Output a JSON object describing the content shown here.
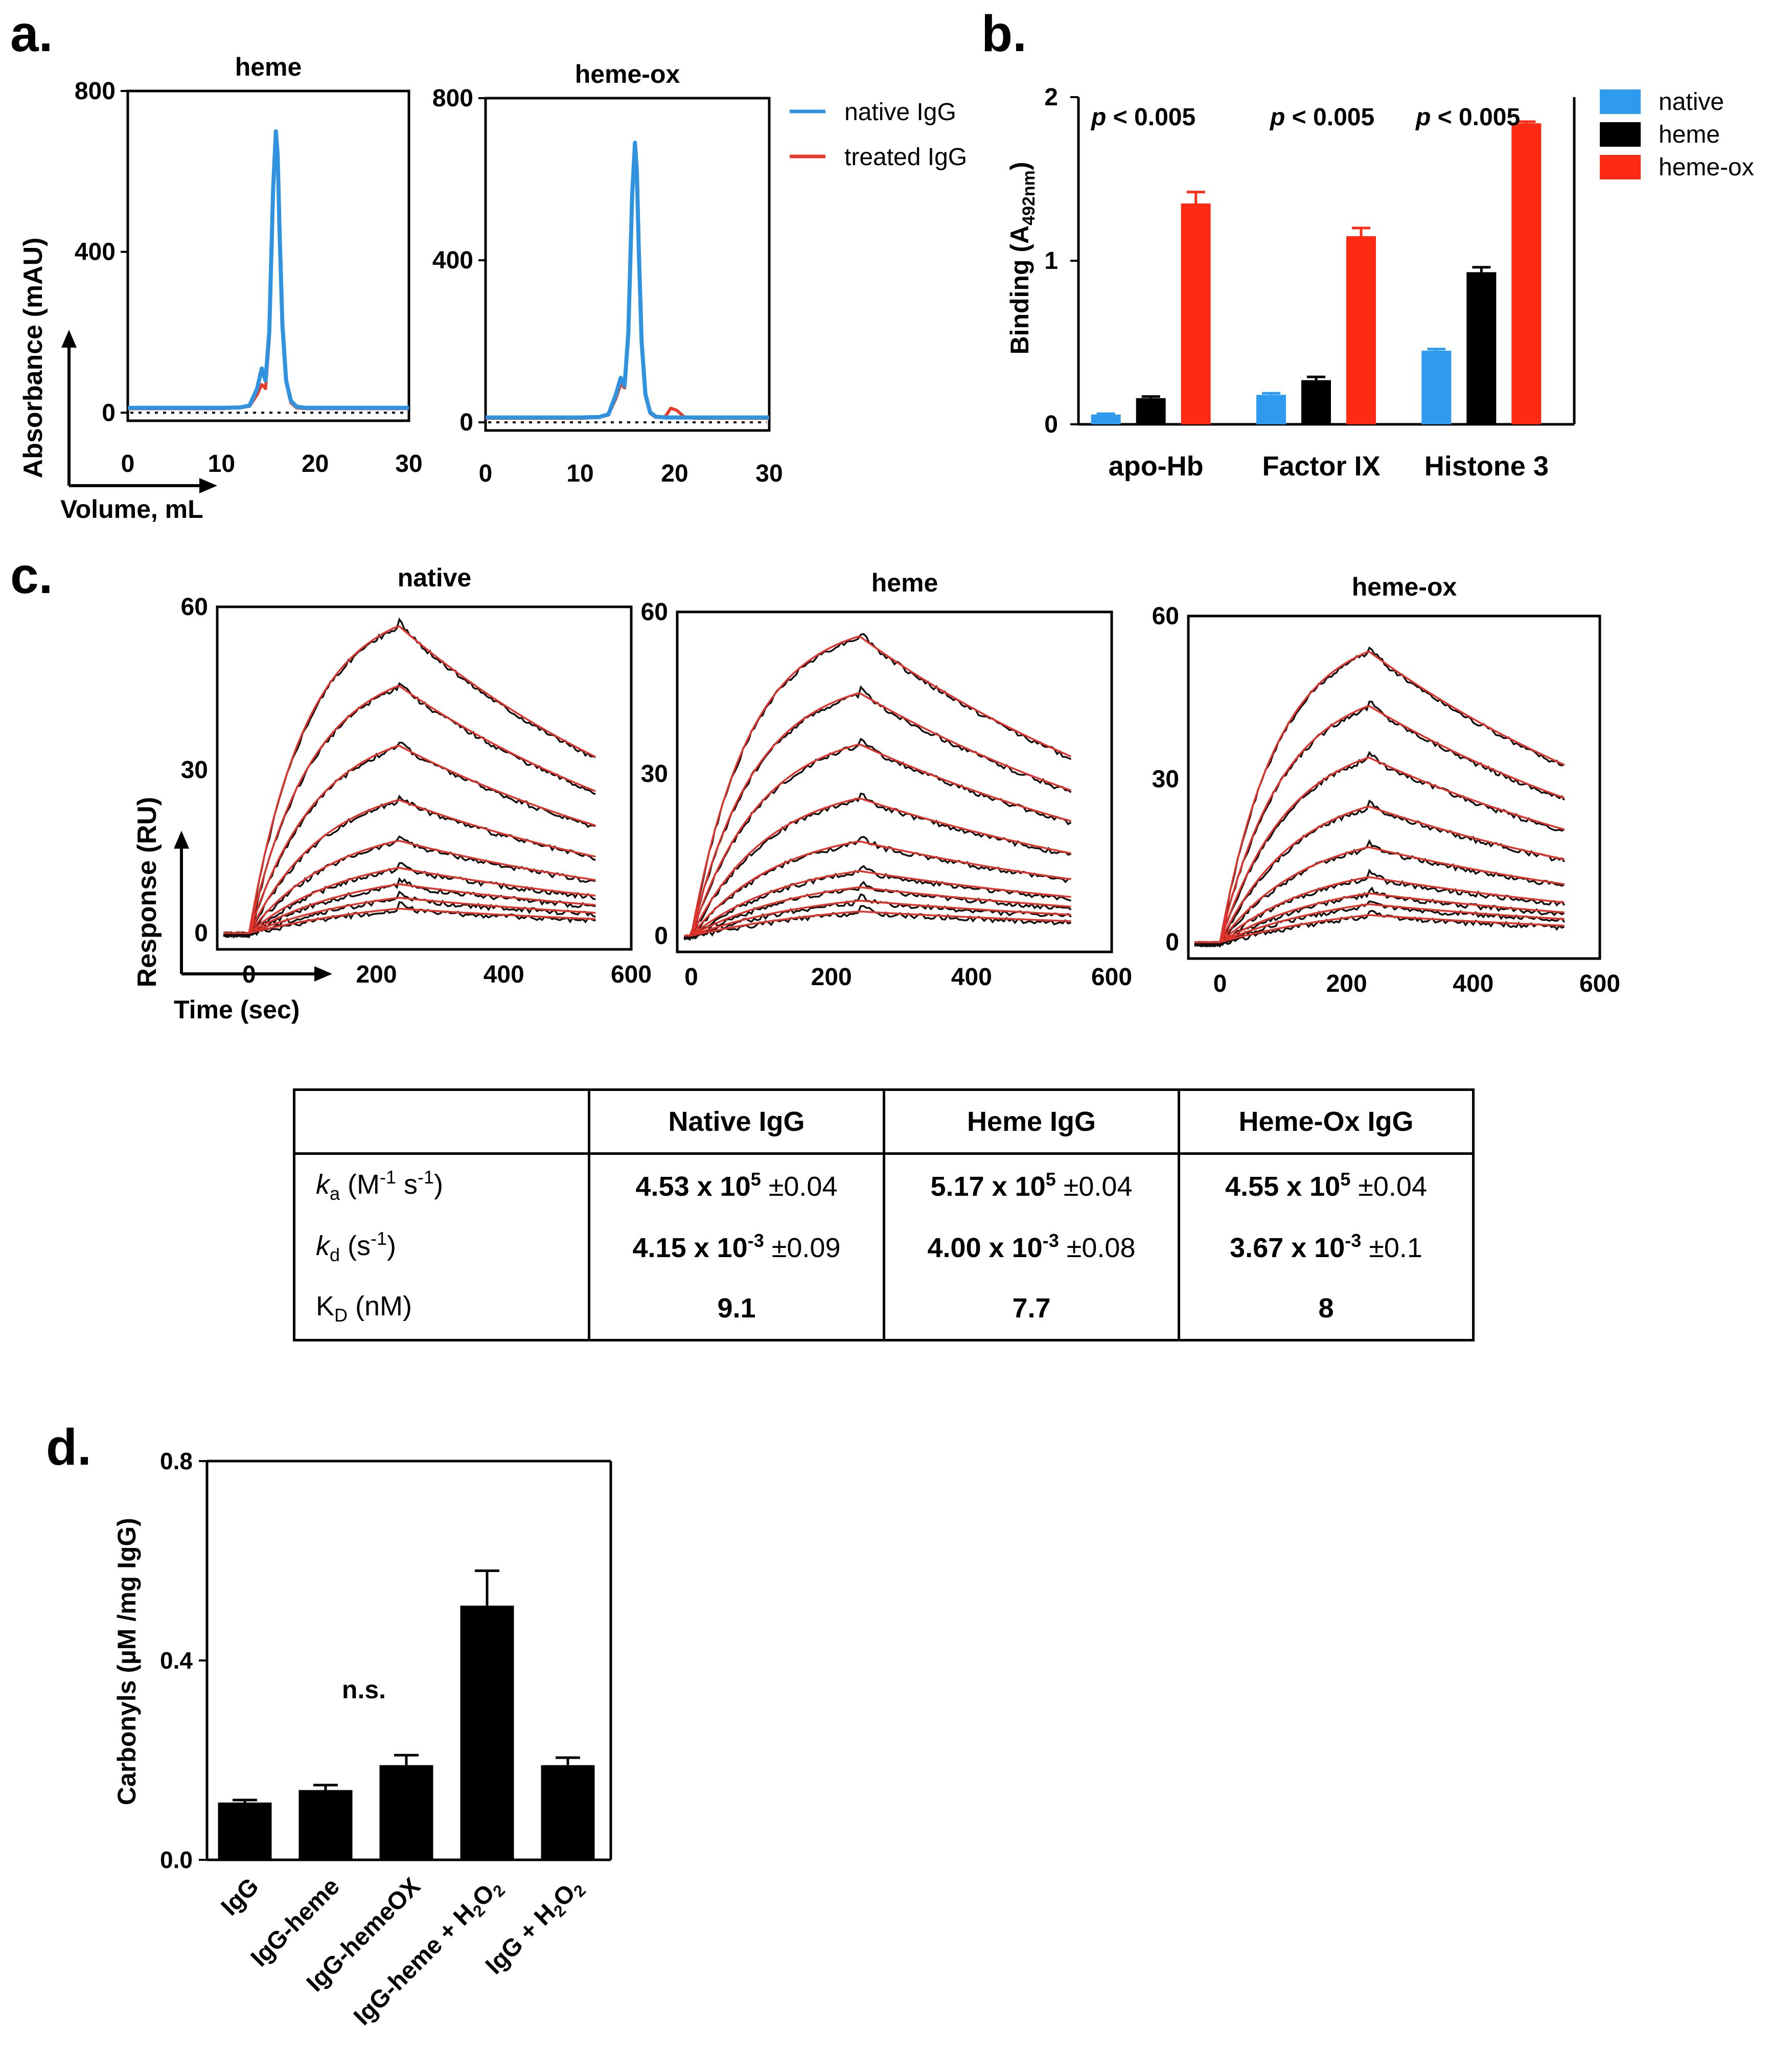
{
  "panel_labels": {
    "a": "a.",
    "b": "b.",
    "c": "c.",
    "d": "d."
  },
  "chart_data": [
    {
      "id": "a-heme",
      "type": "line",
      "title": "heme",
      "xlabel": "Volume, mL",
      "ylabel": "Absorbance (mAU)",
      "xlim": [
        0,
        30
      ],
      "ylim": [
        -20,
        800
      ],
      "xticks": [
        "0",
        "10",
        "20",
        "30"
      ],
      "yticks": [
        "0",
        "400",
        "800"
      ],
      "baseline": 0,
      "series": [
        {
          "name": "native IgG",
          "color": "#2f93e0",
          "x": [
            0,
            10,
            12,
            13,
            13.8,
            14.3,
            14.7,
            15.1,
            15.5,
            15.8,
            16.0,
            16.2,
            16.5,
            16.9,
            17.4,
            18,
            19,
            20,
            22,
            30
          ],
          "y": [
            12,
            12,
            13,
            18,
            60,
            110,
            80,
            200,
            550,
            700,
            640,
            450,
            220,
            80,
            30,
            15,
            12,
            12,
            12,
            12
          ]
        },
        {
          "name": "treated IgG",
          "color": "#e8392a",
          "x": [
            0,
            10,
            12,
            13,
            13.8,
            14.3,
            14.7,
            15.1,
            15.5,
            15.8,
            16.0,
            16.2,
            16.5,
            16.9,
            17.4,
            18,
            19,
            20,
            22,
            30
          ],
          "y": [
            10,
            10,
            12,
            16,
            45,
            70,
            60,
            180,
            540,
            690,
            630,
            440,
            210,
            75,
            25,
            12,
            10,
            10,
            10,
            10
          ]
        }
      ]
    },
    {
      "id": "a-heme-ox",
      "type": "line",
      "title": "heme-ox",
      "xlabel": "",
      "ylabel": "",
      "xlim": [
        0,
        30
      ],
      "ylim": [
        -20,
        800
      ],
      "xticks": [
        "0",
        "10",
        "20",
        "30"
      ],
      "yticks": [
        "0",
        "400",
        "800"
      ],
      "baseline": 0,
      "series": [
        {
          "name": "native IgG",
          "color": "#2f93e0",
          "x": [
            0,
            10,
            12,
            13,
            13.8,
            14.3,
            14.7,
            15.1,
            15.5,
            15.8,
            16.0,
            16.2,
            16.5,
            16.9,
            17.4,
            18,
            19,
            20,
            22,
            30
          ],
          "y": [
            12,
            12,
            13,
            20,
            70,
            110,
            90,
            220,
            560,
            690,
            620,
            430,
            200,
            70,
            25,
            14,
            12,
            12,
            12,
            12
          ]
        },
        {
          "name": "treated IgG",
          "color": "#e8392a",
          "x": [
            0,
            10,
            12,
            13,
            13.8,
            14.3,
            14.7,
            15.1,
            15.5,
            15.8,
            16.0,
            16.2,
            16.5,
            16.9,
            17.4,
            18,
            19,
            19.6,
            20.2,
            21,
            22,
            30
          ],
          "y": [
            10,
            10,
            12,
            18,
            60,
            95,
            85,
            210,
            550,
            680,
            610,
            420,
            195,
            65,
            22,
            12,
            14,
            35,
            30,
            14,
            10,
            10
          ]
        }
      ],
      "legend": {
        "entries": [
          "native IgG",
          "treated IgG"
        ],
        "position": "right"
      }
    },
    {
      "id": "b",
      "type": "bar",
      "title": "",
      "xlabel": "",
      "ylabel": "Binding (A492nm)",
      "ylabel_main": "Binding (A",
      "ylabel_sub": "492nm",
      "ylabel_end": ")",
      "ylim": [
        0,
        2
      ],
      "yticks": [
        "0",
        "1",
        "2"
      ],
      "categories": [
        "apo-Hb",
        "Factor IX",
        "Histone 3"
      ],
      "series": [
        {
          "name": "native",
          "color": "#2f9bf0",
          "values": [
            0.06,
            0.18,
            0.45
          ],
          "errors": [
            0.005,
            0.01,
            0.01
          ]
        },
        {
          "name": "heme",
          "color": "#000000",
          "values": [
            0.16,
            0.27,
            0.93
          ],
          "errors": [
            0.01,
            0.02,
            0.03
          ]
        },
        {
          "name": "heme-ox",
          "color": "#ff2a14",
          "values": [
            1.35,
            1.15,
            1.84
          ],
          "errors": [
            0.07,
            0.05,
            0.01
          ]
        }
      ],
      "annotations": [
        "p < 0.005",
        "p < 0.005",
        "p < 0.005"
      ],
      "annotation_p": "p",
      "annotation_rest": "< 0.005",
      "legend": {
        "entries": [
          "native",
          "heme",
          "heme-ox"
        ],
        "position": "top-right"
      }
    },
    {
      "id": "c-native",
      "type": "line",
      "title": "native",
      "xlabel": "Time (sec)",
      "ylabel": "Response (RU)",
      "xlim": [
        -50,
        600
      ],
      "ylim": [
        -3,
        60
      ],
      "xticks": [
        "0",
        "200",
        "400",
        "600"
      ],
      "yticks": [
        "0",
        "30",
        "60"
      ],
      "injection_end": 235,
      "dissociation_end": 545,
      "plateaus": [
        56.5,
        45.5,
        34.5,
        24.5,
        17,
        12,
        9,
        6.5,
        4.5
      ],
      "koff": 0.0018,
      "kon_base": 0.011
    },
    {
      "id": "c-heme",
      "type": "line",
      "title": "heme",
      "xlabel": "",
      "ylabel": "",
      "xlim": [
        -20,
        600
      ],
      "ylim": [
        -3,
        60
      ],
      "xticks": [
        "0",
        "200",
        "400",
        "600"
      ],
      "yticks": [
        "0",
        "30",
        "60"
      ],
      "injection_end": 240,
      "dissociation_end": 545,
      "plateaus": [
        55.5,
        45,
        35.5,
        25.5,
        17.5,
        12,
        9,
        6.5,
        4.5
      ],
      "koff": 0.0017,
      "kon_base": 0.012
    },
    {
      "id": "c-heme-ox",
      "type": "line",
      "title": "heme-ox",
      "xlabel": "",
      "ylabel": "",
      "xlim": [
        -50,
        600
      ],
      "ylim": [
        -3,
        60
      ],
      "xticks": [
        "0",
        "200",
        "400",
        "600"
      ],
      "yticks": [
        "0",
        "30",
        "60"
      ],
      "injection_end": 235,
      "dissociation_end": 545,
      "plateaus": [
        53.5,
        43.5,
        34,
        25,
        17.5,
        12,
        9,
        7,
        5
      ],
      "koff": 0.0016,
      "kon_base": 0.011
    },
    {
      "id": "d",
      "type": "bar",
      "title": "",
      "xlabel": "",
      "ylabel": "Carbonyls (µM /mg IgG)",
      "ylim": [
        0,
        0.8
      ],
      "yticks": [
        "0.0",
        "0.4",
        "0.8"
      ],
      "categories": [
        "IgG",
        "IgG-heme",
        "IgG-hemeOX",
        "IgG-heme + H2O2",
        "IgG + H2O2"
      ],
      "category_parts": [
        {
          "text": "IgG"
        },
        {
          "text": "IgG-heme"
        },
        {
          "text": "IgG-hemeOX"
        },
        {
          "text": "IgG-heme + H",
          "s1": "2",
          "o": "O",
          "s2": "2"
        },
        {
          "text": "IgG + H",
          "s1": "2",
          "o": "O",
          "s2": "2"
        }
      ],
      "values": [
        0.115,
        0.14,
        0.19,
        0.51,
        0.19
      ],
      "errors": [
        0.005,
        0.01,
        0.02,
        0.07,
        0.015
      ],
      "annotation": "n.s."
    }
  ],
  "table": {
    "headers": [
      "",
      "Native IgG",
      "Heme IgG",
      "Heme-Ox IgG"
    ],
    "rows": [
      {
        "label_italic": "k",
        "label_sub": "a",
        "label_pre": " (M",
        "label_sup1": "-1",
        "label_mid": " s",
        "label_sup2": "-1",
        "label_post": ")",
        "cells": [
          {
            "mantissa": "4.53 x 10",
            "exp": "5",
            "pm": " ±0.04"
          },
          {
            "mantissa": "5.17 x 10",
            "exp": "5",
            "pm": " ±0.04"
          },
          {
            "mantissa": "4.55 x 10",
            "exp": "5",
            "pm": " ±0.04"
          }
        ]
      },
      {
        "label_italic": "k",
        "label_sub": "d",
        "label_pre": " (s",
        "label_sup1": "-1",
        "label_mid": "",
        "label_sup2": "",
        "label_post": ")",
        "cells": [
          {
            "mantissa": "4.15 x 10",
            "exp": "-3",
            "pm": " ±0.09"
          },
          {
            "mantissa": "4.00 x 10",
            "exp": "-3",
            "pm": " ±0.08"
          },
          {
            "mantissa": "3.67 x 10",
            "exp": "-3",
            "pm": " ±0.1"
          }
        ]
      },
      {
        "label_plain": "K",
        "label_sub": "D",
        "label_pre": " (nM)",
        "cells": [
          {
            "value": "9.1"
          },
          {
            "value": "7.7"
          },
          {
            "value": "8"
          }
        ]
      }
    ]
  }
}
